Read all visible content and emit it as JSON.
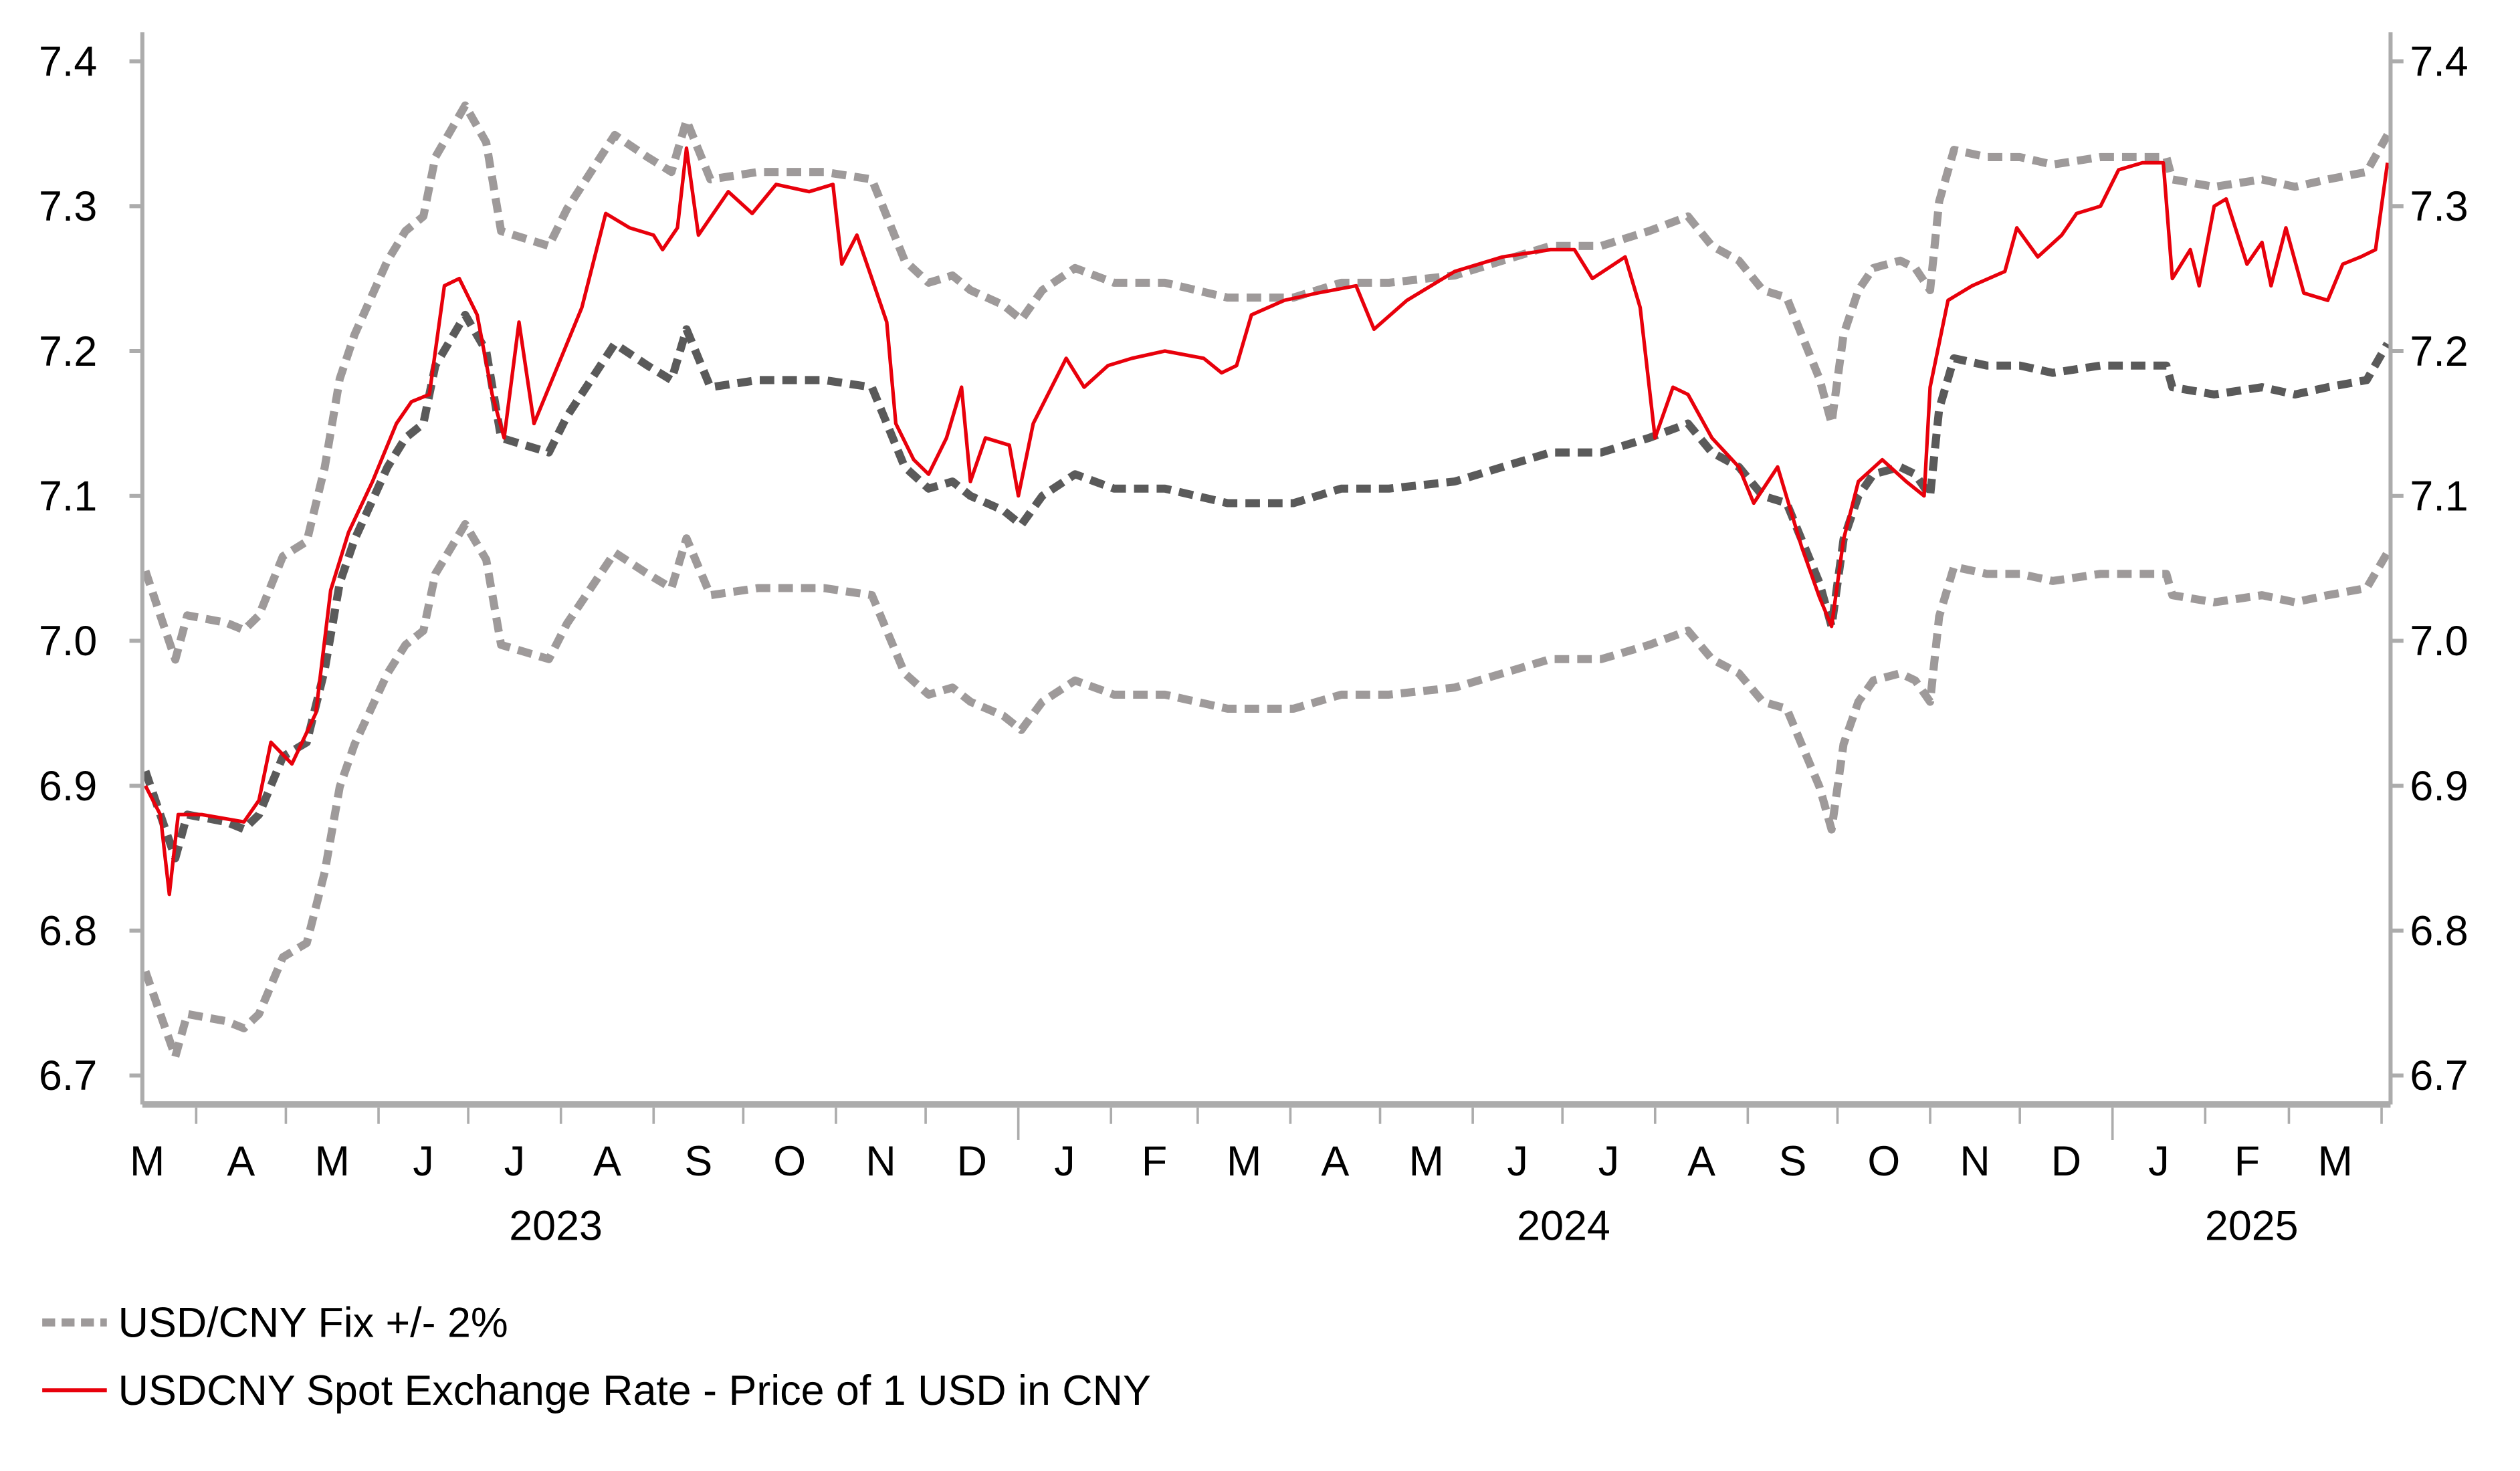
{
  "chart_data": {
    "type": "line",
    "title": "",
    "xlabel": "",
    "ylabel": "",
    "x_unit": "days since 2023-03-14",
    "x_start_date": "2023-03-14",
    "xlim_days": [
      0,
      752
    ],
    "ylim": [
      6.68,
      7.42
    ],
    "y_ticks": [
      "6.7",
      "6.8",
      "6.9",
      "7.0",
      "7.1",
      "7.2",
      "7.3",
      "7.4"
    ],
    "y_tick_values": [
      6.7,
      6.8,
      6.9,
      7.0,
      7.1,
      7.2,
      7.3,
      7.4
    ],
    "dual_y_axis": true,
    "grid": false,
    "legend_position": "bottom-left",
    "months": [
      {
        "label": "M",
        "start": 0,
        "end": 18
      },
      {
        "label": "A",
        "start": 18,
        "end": 48
      },
      {
        "label": "M",
        "start": 48,
        "end": 79
      },
      {
        "label": "J",
        "start": 79,
        "end": 109
      },
      {
        "label": "J",
        "start": 109,
        "end": 140
      },
      {
        "label": "A",
        "start": 140,
        "end": 171
      },
      {
        "label": "S",
        "start": 171,
        "end": 201
      },
      {
        "label": "O",
        "start": 201,
        "end": 232
      },
      {
        "label": "N",
        "start": 232,
        "end": 262
      },
      {
        "label": "D",
        "start": 262,
        "end": 293
      },
      {
        "label": "J",
        "start": 293,
        "end": 324
      },
      {
        "label": "F",
        "start": 324,
        "end": 353
      },
      {
        "label": "M",
        "start": 353,
        "end": 384
      },
      {
        "label": "A",
        "start": 384,
        "end": 414
      },
      {
        "label": "M",
        "start": 414,
        "end": 445
      },
      {
        "label": "J",
        "start": 445,
        "end": 475
      },
      {
        "label": "J",
        "start": 475,
        "end": 506
      },
      {
        "label": "A",
        "start": 506,
        "end": 537
      },
      {
        "label": "S",
        "start": 537,
        "end": 567
      },
      {
        "label": "O",
        "start": 567,
        "end": 598
      },
      {
        "label": "N",
        "start": 598,
        "end": 628
      },
      {
        "label": "D",
        "start": 628,
        "end": 659
      },
      {
        "label": "J",
        "start": 659,
        "end": 690
      },
      {
        "label": "F",
        "start": 690,
        "end": 718
      },
      {
        "label": "M",
        "start": 718,
        "end": 749
      }
    ],
    "year_boundaries": [
      293,
      659
    ],
    "years": [
      {
        "label": "2023",
        "start": 0,
        "end": 293
      },
      {
        "label": "2024",
        "start": 293,
        "end": 659
      },
      {
        "label": "2025",
        "start": 659,
        "end": 752
      }
    ],
    "band_percent": 2,
    "series": [
      {
        "name": "USD/CNY Fix",
        "color": "#5a5a5a",
        "style": "dashed",
        "points": [
          [
            1,
            6.91
          ],
          [
            6,
            6.88
          ],
          [
            11,
            6.85
          ],
          [
            15,
            6.88
          ],
          [
            28,
            6.875
          ],
          [
            34,
            6.87
          ],
          [
            39,
            6.88
          ],
          [
            47,
            6.92
          ],
          [
            55,
            6.93
          ],
          [
            61,
            6.98
          ],
          [
            66,
            7.04
          ],
          [
            71,
            7.07
          ],
          [
            82,
            7.12
          ],
          [
            88,
            7.14
          ],
          [
            94,
            7.15
          ],
          [
            98,
            7.19
          ],
          [
            108,
            7.225
          ],
          [
            115,
            7.2
          ],
          [
            120,
            7.14
          ],
          [
            128,
            7.135
          ],
          [
            136,
            7.13
          ],
          [
            142,
            7.155
          ],
          [
            150,
            7.18
          ],
          [
            158,
            7.205
          ],
          [
            169,
            7.19
          ],
          [
            177,
            7.18
          ],
          [
            182,
            7.215
          ],
          [
            190,
            7.175
          ],
          [
            206,
            7.18
          ],
          [
            228,
            7.18
          ],
          [
            244,
            7.175
          ],
          [
            255,
            7.12
          ],
          [
            263,
            7.105
          ],
          [
            271,
            7.11
          ],
          [
            277,
            7.1
          ],
          [
            288,
            7.09
          ],
          [
            294,
            7.08
          ],
          [
            301,
            7.1
          ],
          [
            312,
            7.115
          ],
          [
            325,
            7.105
          ],
          [
            342,
            7.105
          ],
          [
            363,
            7.095
          ],
          [
            385,
            7.095
          ],
          [
            401,
            7.105
          ],
          [
            417,
            7.105
          ],
          [
            439,
            7.11
          ],
          [
            455,
            7.12
          ],
          [
            471,
            7.13
          ],
          [
            488,
            7.13
          ],
          [
            504,
            7.14
          ],
          [
            517,
            7.15
          ],
          [
            525,
            7.13
          ],
          [
            534,
            7.12
          ],
          [
            542,
            7.1
          ],
          [
            550,
            7.095
          ],
          [
            555,
            7.07
          ],
          [
            561,
            7.04
          ],
          [
            565,
            7.01
          ],
          [
            569,
            7.07
          ],
          [
            574,
            7.1
          ],
          [
            579,
            7.115
          ],
          [
            588,
            7.12
          ],
          [
            593,
            7.115
          ],
          [
            598,
            7.1
          ],
          [
            601,
            7.16
          ],
          [
            606,
            7.195
          ],
          [
            617,
            7.19
          ],
          [
            628,
            7.19
          ],
          [
            639,
            7.185
          ],
          [
            655,
            7.19
          ],
          [
            677,
            7.19
          ],
          [
            679,
            7.175
          ],
          [
            693,
            7.17
          ],
          [
            709,
            7.175
          ],
          [
            720,
            7.17
          ],
          [
            731,
            7.175
          ],
          [
            744,
            7.18
          ],
          [
            751,
            7.205
          ]
        ]
      },
      {
        "name": "USDCNY Spot Exchange Rate - Price of 1 USD in CNY",
        "color": "#e8000b",
        "style": "solid",
        "points": [
          [
            1,
            6.9
          ],
          [
            6,
            6.88
          ],
          [
            9,
            6.825
          ],
          [
            12,
            6.88
          ],
          [
            20,
            6.88
          ],
          [
            34,
            6.875
          ],
          [
            39,
            6.89
          ],
          [
            43,
            6.93
          ],
          [
            50,
            6.915
          ],
          [
            58,
            6.95
          ],
          [
            63,
            7.035
          ],
          [
            69,
            7.075
          ],
          [
            77,
            7.11
          ],
          [
            85,
            7.15
          ],
          [
            90,
            7.165
          ],
          [
            96,
            7.17
          ],
          [
            101,
            7.245
          ],
          [
            106,
            7.25
          ],
          [
            112,
            7.225
          ],
          [
            117,
            7.17
          ],
          [
            121,
            7.14
          ],
          [
            126,
            7.22
          ],
          [
            131,
            7.15
          ],
          [
            139,
            7.19
          ],
          [
            147,
            7.23
          ],
          [
            155,
            7.295
          ],
          [
            163,
            7.285
          ],
          [
            171,
            7.28
          ],
          [
            174,
            7.27
          ],
          [
            179,
            7.285
          ],
          [
            182,
            7.34
          ],
          [
            186,
            7.28
          ],
          [
            196,
            7.31
          ],
          [
            204,
            7.295
          ],
          [
            212,
            7.315
          ],
          [
            223,
            7.31
          ],
          [
            231,
            7.315
          ],
          [
            234,
            7.26
          ],
          [
            239,
            7.28
          ],
          [
            244,
            7.25
          ],
          [
            249,
            7.22
          ],
          [
            252,
            7.15
          ],
          [
            258,
            7.125
          ],
          [
            263,
            7.115
          ],
          [
            269,
            7.14
          ],
          [
            274,
            7.175
          ],
          [
            277,
            7.11
          ],
          [
            282,
            7.14
          ],
          [
            290,
            7.135
          ],
          [
            293,
            7.1
          ],
          [
            298,
            7.15
          ],
          [
            309,
            7.195
          ],
          [
            315,
            7.175
          ],
          [
            323,
            7.19
          ],
          [
            331,
            7.195
          ],
          [
            342,
            7.2
          ],
          [
            355,
            7.195
          ],
          [
            361,
            7.185
          ],
          [
            366,
            7.19
          ],
          [
            371,
            7.225
          ],
          [
            382,
            7.235
          ],
          [
            393,
            7.24
          ],
          [
            406,
            7.245
          ],
          [
            412,
            7.215
          ],
          [
            423,
            7.235
          ],
          [
            439,
            7.255
          ],
          [
            455,
            7.265
          ],
          [
            471,
            7.27
          ],
          [
            479,
            7.27
          ],
          [
            485,
            7.25
          ],
          [
            496,
            7.265
          ],
          [
            501,
            7.23
          ],
          [
            506,
            7.14
          ],
          [
            512,
            7.175
          ],
          [
            517,
            7.17
          ],
          [
            525,
            7.14
          ],
          [
            534,
            7.12
          ],
          [
            539,
            7.095
          ],
          [
            547,
            7.12
          ],
          [
            555,
            7.065
          ],
          [
            561,
            7.03
          ],
          [
            565,
            7.01
          ],
          [
            569,
            7.07
          ],
          [
            574,
            7.11
          ],
          [
            582,
            7.125
          ],
          [
            590,
            7.11
          ],
          [
            596,
            7.1
          ],
          [
            598,
            7.175
          ],
          [
            604,
            7.235
          ],
          [
            612,
            7.245
          ],
          [
            623,
            7.255
          ],
          [
            627,
            7.285
          ],
          [
            634,
            7.265
          ],
          [
            642,
            7.28
          ],
          [
            647,
            7.295
          ],
          [
            655,
            7.3
          ],
          [
            661,
            7.325
          ],
          [
            669,
            7.33
          ],
          [
            676,
            7.33
          ],
          [
            679,
            7.25
          ],
          [
            685,
            7.27
          ],
          [
            688,
            7.245
          ],
          [
            693,
            7.3
          ],
          [
            697,
            7.305
          ],
          [
            704,
            7.26
          ],
          [
            709,
            7.275
          ],
          [
            712,
            7.245
          ],
          [
            717,
            7.285
          ],
          [
            723,
            7.24
          ],
          [
            731,
            7.235
          ],
          [
            736,
            7.26
          ],
          [
            742,
            7.265
          ],
          [
            747,
            7.27
          ],
          [
            751,
            7.33
          ]
        ]
      }
    ],
    "band_color": "#9e9a9a",
    "legend": [
      {
        "label": "USD/CNY Fix +/- 2%",
        "color": "#9e9a9a",
        "style": "dashed"
      },
      {
        "label": "USDCNY Spot Exchange Rate - Price of 1 USD in CNY",
        "color": "#e8000b",
        "style": "solid"
      }
    ]
  }
}
